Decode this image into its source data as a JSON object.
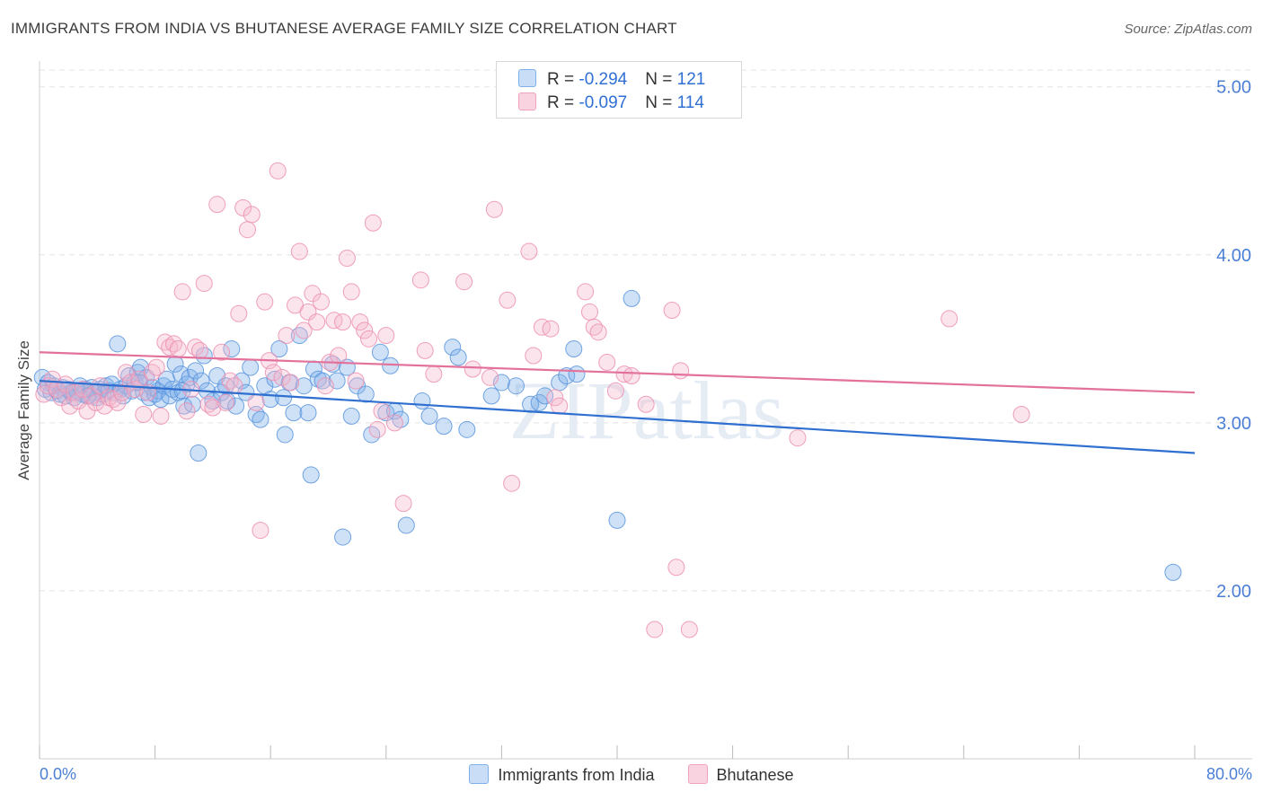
{
  "title": "IMMIGRANTS FROM INDIA VS BHUTANESE AVERAGE FAMILY SIZE CORRELATION CHART",
  "source": "Source: ZipAtlas.com",
  "watermark": "ZIPatlas",
  "stats": [
    {
      "r_label": "R = ",
      "r_value": "-0.294",
      "n_label": "N = ",
      "n_value": "121",
      "color": "#9dc3f0"
    },
    {
      "r_label": "R = ",
      "r_value": "-0.097",
      "n_label": "N = ",
      "n_value": "114",
      "color": "#f4b7cc"
    }
  ],
  "chart_data": {
    "type": "scatter",
    "title": "IMMIGRANTS FROM INDIA VS BHUTANESE AVERAGE FAMILY SIZE CORRELATION CHART",
    "xlabel": "",
    "ylabel": "Average Family Size",
    "xlim": [
      0,
      80
    ],
    "ylim": [
      1.0,
      5.1
    ],
    "x_tick_labels": [
      "0.0%",
      "80.0%"
    ],
    "y_ticks": [
      2.0,
      3.0,
      4.0,
      5.0
    ],
    "y_tick_labels": [
      "2.00",
      "3.00",
      "4.00",
      "5.00"
    ],
    "grid": "horizontal dashed",
    "legend_position": "bottom-center",
    "series": [
      {
        "name": "Immigrants from India",
        "color": "#7fb0ea",
        "stroke": "#5b95dd",
        "trend": {
          "x": [
            0,
            80
          ],
          "y": [
            3.25,
            2.82
          ],
          "color": "#2e6fcf"
        },
        "points": [
          [
            0.2,
            3.27
          ],
          [
            0.4,
            3.2
          ],
          [
            0.6,
            3.24
          ],
          [
            0.8,
            3.18
          ],
          [
            1.0,
            3.22
          ],
          [
            1.2,
            3.19
          ],
          [
            1.4,
            3.17
          ],
          [
            1.6,
            3.21
          ],
          [
            1.8,
            3.16
          ],
          [
            2.0,
            3.2
          ],
          [
            2.2,
            3.18
          ],
          [
            2.4,
            3.15
          ],
          [
            2.6,
            3.19
          ],
          [
            2.8,
            3.22
          ],
          [
            3.0,
            3.17
          ],
          [
            3.2,
            3.2
          ],
          [
            3.4,
            3.16
          ],
          [
            3.6,
            3.21
          ],
          [
            3.8,
            3.18
          ],
          [
            4.0,
            3.15
          ],
          [
            4.2,
            3.2
          ],
          [
            4.4,
            3.17
          ],
          [
            4.6,
            3.22
          ],
          [
            4.8,
            3.19
          ],
          [
            5.0,
            3.23
          ],
          [
            5.2,
            3.18
          ],
          [
            5.4,
            3.47
          ],
          [
            5.6,
            3.2
          ],
          [
            5.8,
            3.16
          ],
          [
            6.0,
            3.22
          ],
          [
            6.2,
            3.28
          ],
          [
            6.4,
            3.19
          ],
          [
            6.6,
            3.24
          ],
          [
            6.8,
            3.3
          ],
          [
            7.0,
            3.33
          ],
          [
            7.2,
            3.18
          ],
          [
            7.4,
            3.27
          ],
          [
            7.6,
            3.15
          ],
          [
            7.8,
            3.21
          ],
          [
            8.0,
            3.17
          ],
          [
            8.2,
            3.19
          ],
          [
            8.4,
            3.14
          ],
          [
            8.6,
            3.22
          ],
          [
            8.8,
            3.26
          ],
          [
            9.0,
            3.16
          ],
          [
            9.2,
            3.2
          ],
          [
            9.4,
            3.35
          ],
          [
            9.6,
            3.18
          ],
          [
            9.8,
            3.29
          ],
          [
            10.0,
            3.1
          ],
          [
            10.2,
            3.23
          ],
          [
            10.4,
            3.27
          ],
          [
            10.6,
            3.11
          ],
          [
            10.8,
            3.31
          ],
          [
            11.0,
            2.82
          ],
          [
            11.2,
            3.25
          ],
          [
            11.4,
            3.4
          ],
          [
            11.6,
            3.19
          ],
          [
            12.0,
            3.13
          ],
          [
            12.3,
            3.28
          ],
          [
            12.6,
            3.18
          ],
          [
            13.0,
            3.13
          ],
          [
            13.3,
            3.44
          ],
          [
            13.6,
            3.1
          ],
          [
            14.0,
            3.25
          ],
          [
            14.3,
            3.18
          ],
          [
            14.6,
            3.33
          ],
          [
            15.0,
            3.05
          ],
          [
            15.3,
            3.02
          ],
          [
            15.6,
            3.22
          ],
          [
            16.0,
            3.14
          ],
          [
            16.3,
            3.26
          ],
          [
            16.6,
            3.44
          ],
          [
            17.0,
            2.93
          ],
          [
            17.3,
            3.24
          ],
          [
            17.6,
            3.06
          ],
          [
            18.0,
            3.52
          ],
          [
            18.3,
            3.22
          ],
          [
            18.6,
            3.06
          ],
          [
            18.8,
            2.69
          ],
          [
            19.0,
            3.32
          ],
          [
            19.3,
            3.26
          ],
          [
            19.6,
            3.25
          ],
          [
            20.3,
            3.35
          ],
          [
            20.6,
            3.25
          ],
          [
            21.0,
            2.32
          ],
          [
            21.3,
            3.33
          ],
          [
            21.6,
            3.04
          ],
          [
            22.0,
            3.22
          ],
          [
            22.6,
            3.17
          ],
          [
            23.0,
            2.93
          ],
          [
            23.6,
            3.42
          ],
          [
            24.0,
            3.06
          ],
          [
            24.3,
            3.34
          ],
          [
            24.6,
            3.07
          ],
          [
            25.0,
            3.02
          ],
          [
            25.4,
            2.39
          ],
          [
            26.5,
            3.13
          ],
          [
            27.0,
            3.04
          ],
          [
            28.0,
            2.98
          ],
          [
            28.6,
            3.45
          ],
          [
            29.0,
            3.39
          ],
          [
            29.6,
            2.96
          ],
          [
            31.3,
            3.16
          ],
          [
            32.0,
            3.24
          ],
          [
            33.0,
            3.22
          ],
          [
            34.0,
            3.11
          ],
          [
            34.6,
            3.12
          ],
          [
            35.0,
            3.16
          ],
          [
            36.0,
            3.24
          ],
          [
            36.5,
            3.28
          ],
          [
            37.0,
            3.44
          ],
          [
            37.2,
            3.29
          ],
          [
            40.0,
            2.42
          ],
          [
            41.0,
            3.74
          ],
          [
            78.5,
            2.11
          ],
          [
            3.3,
            3.16
          ],
          [
            6.9,
            3.24
          ],
          [
            9.9,
            3.19
          ],
          [
            12.9,
            3.22
          ],
          [
            16.9,
            3.15
          ]
        ]
      },
      {
        "name": "Bhutanese",
        "color": "#f4b7cc",
        "stroke": "#ec8fb0",
        "trend": {
          "x": [
            0,
            80
          ],
          "y": [
            3.42,
            3.18
          ],
          "color": "#e2729b"
        },
        "points": [
          [
            0.3,
            3.17
          ],
          [
            0.6,
            3.22
          ],
          [
            0.9,
            3.26
          ],
          [
            1.2,
            3.2
          ],
          [
            1.5,
            3.15
          ],
          [
            1.8,
            3.23
          ],
          [
            2.1,
            3.1
          ],
          [
            2.4,
            3.18
          ],
          [
            2.7,
            3.13
          ],
          [
            3.0,
            3.2
          ],
          [
            3.3,
            3.07
          ],
          [
            3.6,
            3.16
          ],
          [
            3.9,
            3.12
          ],
          [
            4.2,
            3.22
          ],
          [
            4.5,
            3.1
          ],
          [
            4.8,
            3.15
          ],
          [
            5.1,
            3.14
          ],
          [
            5.4,
            3.12
          ],
          [
            5.7,
            3.18
          ],
          [
            6.0,
            3.3
          ],
          [
            6.3,
            3.24
          ],
          [
            6.6,
            3.2
          ],
          [
            6.9,
            3.26
          ],
          [
            7.2,
            3.05
          ],
          [
            7.5,
            3.18
          ],
          [
            7.8,
            3.3
          ],
          [
            8.1,
            3.33
          ],
          [
            8.4,
            3.04
          ],
          [
            8.7,
            3.48
          ],
          [
            9.0,
            3.45
          ],
          [
            9.3,
            3.47
          ],
          [
            9.6,
            3.44
          ],
          [
            9.9,
            3.78
          ],
          [
            10.2,
            3.07
          ],
          [
            10.5,
            3.2
          ],
          [
            10.8,
            3.45
          ],
          [
            11.1,
            3.43
          ],
          [
            11.4,
            3.83
          ],
          [
            11.7,
            3.11
          ],
          [
            12.0,
            3.09
          ],
          [
            12.3,
            4.3
          ],
          [
            12.6,
            3.42
          ],
          [
            12.9,
            3.12
          ],
          [
            13.2,
            3.25
          ],
          [
            13.5,
            3.22
          ],
          [
            13.8,
            3.65
          ],
          [
            14.1,
            4.28
          ],
          [
            14.4,
            4.15
          ],
          [
            14.7,
            4.24
          ],
          [
            15.0,
            3.12
          ],
          [
            15.3,
            2.36
          ],
          [
            15.6,
            3.72
          ],
          [
            15.9,
            3.37
          ],
          [
            16.2,
            3.3
          ],
          [
            16.5,
            4.5
          ],
          [
            16.8,
            3.27
          ],
          [
            17.1,
            3.52
          ],
          [
            17.4,
            3.24
          ],
          [
            17.7,
            3.7
          ],
          [
            18.0,
            4.02
          ],
          [
            18.3,
            3.55
          ],
          [
            18.6,
            3.66
          ],
          [
            18.9,
            3.77
          ],
          [
            19.2,
            3.6
          ],
          [
            19.5,
            3.72
          ],
          [
            19.8,
            3.22
          ],
          [
            20.1,
            3.36
          ],
          [
            20.4,
            3.61
          ],
          [
            20.7,
            3.4
          ],
          [
            21.0,
            3.6
          ],
          [
            21.3,
            3.98
          ],
          [
            21.6,
            3.78
          ],
          [
            21.9,
            3.25
          ],
          [
            22.2,
            3.6
          ],
          [
            22.5,
            3.55
          ],
          [
            22.8,
            3.5
          ],
          [
            23.1,
            4.19
          ],
          [
            23.4,
            2.96
          ],
          [
            23.7,
            3.07
          ],
          [
            24.0,
            3.52
          ],
          [
            24.6,
            3.0
          ],
          [
            25.2,
            2.52
          ],
          [
            26.4,
            3.85
          ],
          [
            26.7,
            3.43
          ],
          [
            27.3,
            3.29
          ],
          [
            29.4,
            3.84
          ],
          [
            30.0,
            3.32
          ],
          [
            31.2,
            3.27
          ],
          [
            31.5,
            4.27
          ],
          [
            32.7,
            2.64
          ],
          [
            32.4,
            3.73
          ],
          [
            33.9,
            4.02
          ],
          [
            34.2,
            3.4
          ],
          [
            34.8,
            3.57
          ],
          [
            35.4,
            3.56
          ],
          [
            35.7,
            3.15
          ],
          [
            36.0,
            3.1
          ],
          [
            37.8,
            3.78
          ],
          [
            38.1,
            3.66
          ],
          [
            38.4,
            3.57
          ],
          [
            38.7,
            3.54
          ],
          [
            39.3,
            3.36
          ],
          [
            39.9,
            3.19
          ],
          [
            40.5,
            3.29
          ],
          [
            42.0,
            3.11
          ],
          [
            42.6,
            1.77
          ],
          [
            43.8,
            3.67
          ],
          [
            44.1,
            2.14
          ],
          [
            44.4,
            3.31
          ],
          [
            45.0,
            1.77
          ],
          [
            52.5,
            2.91
          ],
          [
            63.0,
            3.62
          ],
          [
            68.0,
            3.05
          ],
          [
            41.0,
            3.28
          ]
        ]
      }
    ]
  },
  "legend": [
    {
      "label": "Immigrants from India",
      "color": "#b9d3f4"
    },
    {
      "label": "Bhutanese",
      "color": "#f7c8d8"
    }
  ]
}
